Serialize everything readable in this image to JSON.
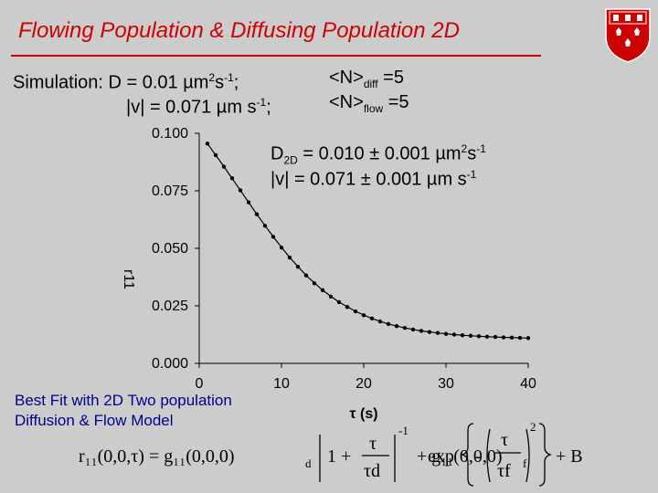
{
  "title": "Flowing Population & Diffusing Population 2D",
  "simulation": {
    "label": "Simulation: D = 0.01",
    "d_unit": "µm",
    "d_exp1": "2",
    "d_mid": "s",
    "d_exp2": "-1",
    "d_end": ";",
    "v_label": "|v| = 0.071",
    "v_unit": "µm s",
    "v_exp": "-1",
    "v_end": ";",
    "n_diff_pre": "<N>",
    "n_diff_sub": "diff",
    "n_diff_val": " =5",
    "n_flow_pre": "<N>",
    "n_flow_sub": "flow",
    "n_flow_val": " =5"
  },
  "fit": {
    "d_pre": "D",
    "d_sub": "2D",
    "d_val": " = 0.010 ± 0.001 µm",
    "d_exp1": "2",
    "d_mid": "s",
    "d_exp2": "-1",
    "v_pre": "|v|  = 0.071 ± 0.001 µm s",
    "v_exp": "-1"
  },
  "model_note": {
    "line1": "Best Fit with 2D Two population",
    "line2": "Diffusion & Flow Model"
  },
  "formula": {
    "lhs": "r₁₁(0,0,τ) = g₁₁(0,0,0)",
    "d": "d",
    "plus1": "1 +",
    "tau": "τ",
    "tau_d": "τd",
    "exp_m1": "-1",
    "plus2": "+ g₁₁(0,0,0)",
    "f": "f",
    "exp": "exp",
    "minus": "-",
    "tau_f": "τf",
    "sq": "2",
    "plus3": "+ B"
  },
  "chart_data": {
    "type": "scatter",
    "xlabel": "τ (s)",
    "ylabel": "r11",
    "xlim": [
      0,
      40
    ],
    "ylim": [
      0,
      0.1
    ],
    "xticks": [
      "0",
      "10",
      "20",
      "30",
      "40"
    ],
    "yticks": [
      "0.000",
      "0.025",
      "0.050",
      "0.075",
      "0.100"
    ],
    "series": [
      {
        "points": [
          [
            1.0,
            0.0955
          ],
          [
            2.0,
            0.0905
          ],
          [
            3.0,
            0.0855
          ],
          [
            4.0,
            0.0805
          ],
          [
            5.0,
            0.0752
          ],
          [
            6.0,
            0.07
          ],
          [
            7.0,
            0.0648
          ],
          [
            8.0,
            0.0598
          ],
          [
            9.0,
            0.055
          ],
          [
            10.0,
            0.0503
          ],
          [
            11.0,
            0.046
          ],
          [
            12.0,
            0.042
          ],
          [
            13.0,
            0.0382
          ],
          [
            14.0,
            0.0348
          ],
          [
            15.0,
            0.0318
          ],
          [
            16.0,
            0.029
          ],
          [
            17.0,
            0.0266
          ],
          [
            18.0,
            0.0245
          ],
          [
            19.0,
            0.0226
          ],
          [
            20.0,
            0.0209
          ],
          [
            21.0,
            0.0195
          ],
          [
            22.0,
            0.0182
          ],
          [
            23.0,
            0.0171
          ],
          [
            24.0,
            0.0162
          ],
          [
            25.0,
            0.0154
          ],
          [
            26.0,
            0.0147
          ],
          [
            27.0,
            0.0141
          ],
          [
            28.0,
            0.0136
          ],
          [
            29.0,
            0.0132
          ],
          [
            30.0,
            0.0128
          ],
          [
            31.0,
            0.0125
          ],
          [
            32.0,
            0.0122
          ],
          [
            33.0,
            0.012
          ],
          [
            34.0,
            0.0118
          ],
          [
            35.0,
            0.0116
          ],
          [
            36.0,
            0.0115
          ],
          [
            37.0,
            0.0113
          ],
          [
            38.0,
            0.0112
          ],
          [
            39.0,
            0.0111
          ],
          [
            40.0,
            0.011
          ]
        ]
      },
      {
        "type": "line",
        "points": [
          [
            1.0,
            0.0955
          ],
          [
            3.0,
            0.0855
          ],
          [
            5.0,
            0.0752
          ],
          [
            7.0,
            0.0648
          ],
          [
            9.0,
            0.055
          ],
          [
            11.0,
            0.046
          ],
          [
            13.0,
            0.0382
          ],
          [
            15.0,
            0.0318
          ],
          [
            17.0,
            0.0266
          ],
          [
            19.0,
            0.0226
          ],
          [
            21.0,
            0.0195
          ],
          [
            23.0,
            0.0171
          ],
          [
            25.0,
            0.0154
          ],
          [
            27.0,
            0.0141
          ],
          [
            29.0,
            0.0132
          ],
          [
            31.0,
            0.0125
          ],
          [
            33.0,
            0.012
          ],
          [
            35.0,
            0.0116
          ],
          [
            37.0,
            0.0113
          ],
          [
            40.0,
            0.011
          ]
        ]
      }
    ]
  },
  "colors": {
    "title": "#cc0000",
    "background": "#cccccc",
    "crest": "#cc0000",
    "note": "#00008b"
  }
}
